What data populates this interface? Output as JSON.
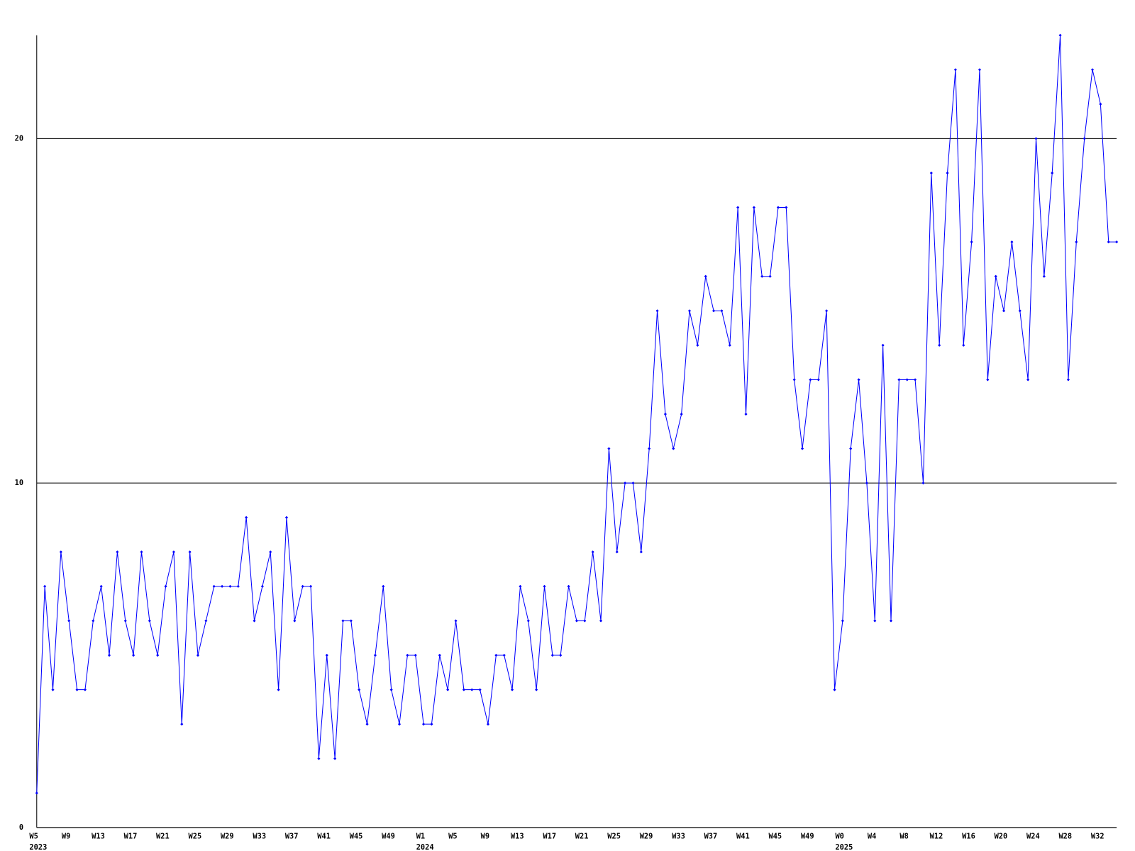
{
  "chart_data": {
    "type": "line",
    "categories": [
      "W5",
      null,
      null,
      null,
      "W9",
      null,
      null,
      null,
      "W13",
      null,
      null,
      null,
      "W17",
      null,
      null,
      null,
      "W21",
      null,
      null,
      null,
      "W25",
      null,
      null,
      null,
      "W29",
      null,
      null,
      null,
      "W33",
      null,
      null,
      null,
      "W37",
      null,
      null,
      null,
      "W41",
      null,
      null,
      null,
      "W45",
      null,
      null,
      null,
      "W49",
      null,
      null,
      null,
      "W1",
      null,
      null,
      null,
      "W5",
      null,
      null,
      null,
      "W9",
      null,
      null,
      null,
      "W13",
      null,
      null,
      null,
      "W17",
      null,
      null,
      null,
      "W21",
      null,
      null,
      null,
      "W25",
      null,
      null,
      null,
      "W29",
      null,
      null,
      null,
      "W33",
      null,
      null,
      null,
      "W37",
      null,
      null,
      null,
      "W41",
      null,
      null,
      null,
      "W45",
      null,
      null,
      null,
      "W49",
      null,
      null,
      null,
      "W0",
      null,
      null,
      null,
      "W4",
      null,
      null,
      null,
      "W8",
      null,
      null,
      null,
      "W12",
      null,
      null,
      null,
      "W16",
      null,
      null,
      null,
      "W20",
      null,
      null,
      null,
      "W24",
      null,
      null,
      null,
      "W28",
      null,
      null,
      null,
      "W32",
      null,
      null
    ],
    "category_years": [
      "2023",
      null,
      null,
      null,
      null,
      null,
      null,
      null,
      null,
      null,
      null,
      null,
      null,
      null,
      null,
      null,
      null,
      null,
      null,
      null,
      null,
      null,
      null,
      null,
      null,
      null,
      null,
      null,
      null,
      null,
      null,
      null,
      null,
      null,
      null,
      null,
      null,
      null,
      null,
      null,
      null,
      null,
      null,
      null,
      null,
      null,
      null,
      null,
      "2024",
      null,
      null,
      null,
      null,
      null,
      null,
      null,
      null,
      null,
      null,
      null,
      null,
      null,
      null,
      null,
      null,
      null,
      null,
      null,
      null,
      null,
      null,
      null,
      null,
      null,
      null,
      null,
      null,
      null,
      null,
      null,
      null,
      null,
      null,
      null,
      null,
      null,
      null,
      null,
      null,
      null,
      null,
      null,
      null,
      null,
      null,
      null,
      null,
      null,
      null,
      null,
      "2025",
      null,
      null,
      null,
      null,
      null,
      null,
      null,
      null,
      null,
      null,
      null,
      null,
      null,
      null,
      null,
      null,
      null,
      null,
      null,
      null,
      null,
      null,
      null,
      null,
      null,
      null,
      null,
      null,
      null,
      null,
      null,
      null,
      null,
      null
    ],
    "series": [
      {
        "color": "#0000ff",
        "values": [
          1,
          7,
          4,
          8,
          6,
          4,
          4,
          6,
          7,
          5,
          8,
          6,
          5,
          8,
          6,
          5,
          7,
          8,
          3,
          8,
          5,
          6,
          7,
          7,
          7,
          7,
          9,
          6,
          7,
          8,
          4,
          9,
          6,
          7,
          7,
          2,
          5,
          2,
          6,
          6,
          4,
          3,
          5,
          7,
          4,
          3,
          5,
          5,
          3,
          3,
          5,
          4,
          6,
          4,
          4,
          4,
          3,
          5,
          5,
          4,
          7,
          6,
          4,
          7,
          5,
          5,
          7,
          6,
          6,
          8,
          6,
          11,
          8,
          10,
          10,
          8,
          11,
          15,
          12,
          11,
          12,
          15,
          14,
          16,
          15,
          15,
          14,
          18,
          12,
          18,
          16,
          16,
          18,
          18,
          13,
          11,
          13,
          13,
          15,
          4,
          6,
          11,
          13,
          10,
          6,
          14,
          6,
          13,
          13,
          13,
          10,
          19,
          14,
          19,
          22,
          14,
          17,
          22,
          13,
          16,
          15,
          17,
          15,
          13,
          20,
          16,
          19,
          23,
          13,
          17,
          20,
          22,
          21,
          17,
          17
        ]
      }
    ],
    "ylim": [
      0,
      23
    ],
    "yticks": [
      0,
      10,
      20
    ],
    "grid": true
  }
}
